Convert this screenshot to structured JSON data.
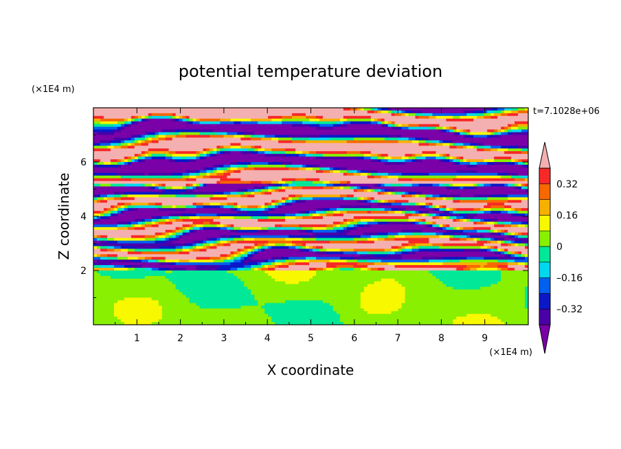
{
  "chart_data": {
    "type": "heatmap",
    "title": "potential temperature deviation",
    "xlabel": "X coordinate",
    "ylabel": "Z coordinate",
    "x_unit": "(×1E4 m)",
    "y_unit": "(×1E4 m)",
    "time_label": "t=7.1028e+06",
    "xlim": [
      0,
      10
    ],
    "ylim": [
      0,
      8
    ],
    "x_ticks": [
      "1",
      "2",
      "3",
      "4",
      "5",
      "6",
      "7",
      "8",
      "9"
    ],
    "y_ticks": [
      "2",
      "4",
      "6"
    ],
    "colorbar": {
      "tick_labels": [
        "0.32",
        "0.16",
        "0",
        "–0.16",
        "–0.32"
      ],
      "levels": [
        -0.4,
        -0.32,
        -0.24,
        -0.16,
        -0.08,
        0,
        0.08,
        0.16,
        0.24,
        0.32,
        0.4
      ],
      "colors": [
        "#7a00a8",
        "#4a00a8",
        "#0a18c8",
        "#0060f0",
        "#00d8f0",
        "#00e898",
        "#88f000",
        "#f8f800",
        "#f8b000",
        "#f86800",
        "#f82828",
        "#f4b0b0"
      ],
      "extend": "both"
    }
  }
}
